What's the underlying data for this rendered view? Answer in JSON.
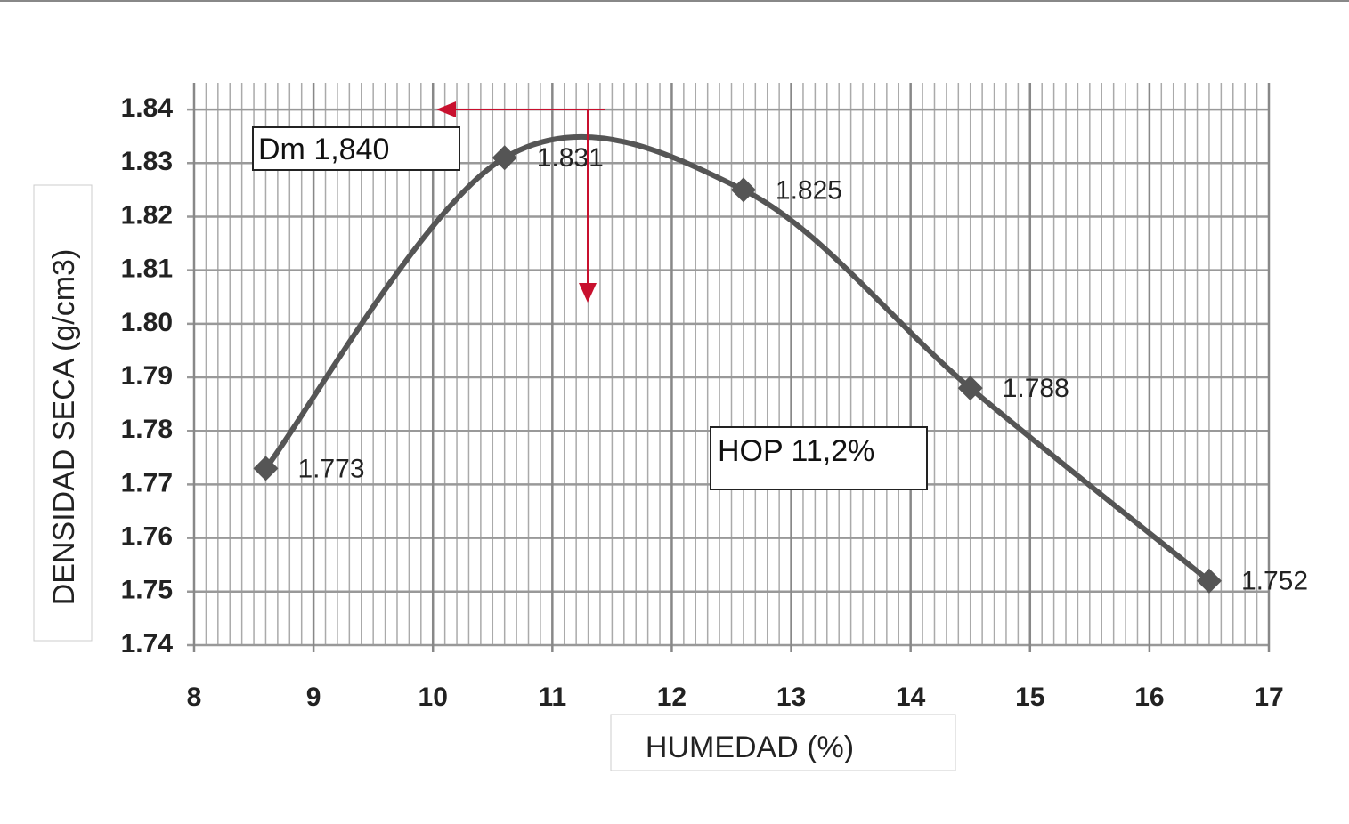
{
  "chart_data": {
    "type": "line",
    "x_label": "HUMEDAD (%)",
    "y_label": "DENSIDAD SECA  (g/cm3)",
    "x": [
      8.6,
      10.6,
      12.6,
      14.5,
      16.5
    ],
    "series": [
      {
        "name": "Densidad seca",
        "color": "#555555",
        "values": [
          1.773,
          1.831,
          1.825,
          1.788,
          1.752
        ]
      }
    ],
    "xlim": [
      8,
      17
    ],
    "xticks": [
      8,
      9,
      10,
      11,
      12,
      13,
      14,
      15,
      16,
      17
    ],
    "xminorticks": [
      8.1,
      8.2,
      8.3,
      8.4,
      8.5,
      8.6,
      8.7,
      8.8,
      8.9,
      9.1,
      9.2,
      9.3,
      9.4,
      9.5,
      9.6,
      9.7,
      9.8,
      9.9,
      10.1,
      10.2,
      10.3,
      10.4,
      10.5,
      10.6,
      10.7,
      10.8,
      10.9,
      11.1,
      11.2,
      11.3,
      11.4,
      11.5,
      11.6,
      11.7,
      11.8,
      11.9,
      12.1,
      12.2,
      12.3,
      12.4,
      12.5,
      12.6,
      12.7,
      12.8,
      12.9,
      13.1,
      13.2,
      13.3,
      13.4,
      13.5,
      13.6,
      13.7,
      13.8,
      13.9,
      14.1,
      14.2,
      14.3,
      14.4,
      14.5,
      14.6,
      14.7,
      14.8,
      14.9,
      15.1,
      15.2,
      15.3,
      15.4,
      15.5,
      15.6,
      15.7,
      15.8,
      15.9,
      16.1,
      16.2,
      16.3,
      16.4,
      16.5,
      16.6,
      16.7,
      16.8,
      16.9
    ],
    "ylim": [
      1.74,
      1.845
    ],
    "yticks": [
      1.74,
      1.75,
      1.76,
      1.77,
      1.78,
      1.79,
      {
        "value": 1.8,
        "label": "1.80"
      },
      1.81,
      1.82,
      1.83,
      1.84
    ],
    "grid": true,
    "annotations": [
      "Dm 1,840",
      "HOP 11,2%"
    ]
  }
}
